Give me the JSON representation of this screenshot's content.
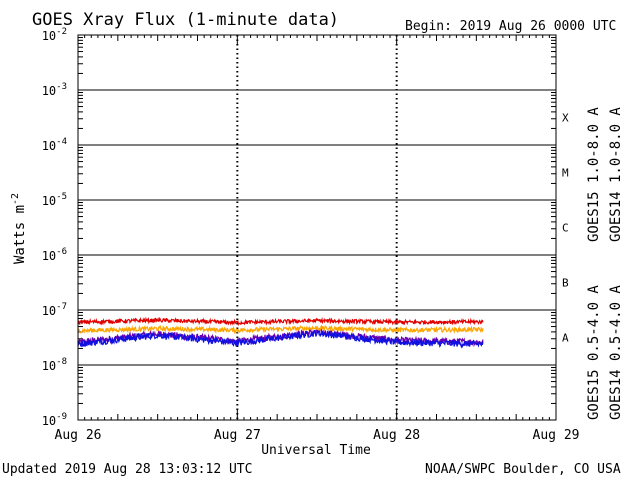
{
  "header": {
    "title": "GOES Xray Flux (1-minute data)",
    "begin": "Begin:  2019 Aug 26 0000 UTC"
  },
  "footer": {
    "updated": "Updated 2019 Aug 28 13:03:12 UTC",
    "credit": "NOAA/SWPC Boulder, CO USA"
  },
  "colors": {
    "goes15_long": "#e00000",
    "goes14_long": "#ffa500",
    "goes15_short": "#1010e0",
    "goes14_short": "#6a00b0"
  },
  "chart_data": {
    "type": "line",
    "title": "GOES Xray Flux (1-minute data)",
    "xlabel": "Universal Time",
    "ylabel": "Watts m",
    "ylabel_sup": "-2",
    "yscale": "log",
    "ylim": [
      1e-09,
      0.01
    ],
    "xlim": [
      "2019-08-26",
      "2019-08-29"
    ],
    "x_tick_labels": [
      "Aug 26",
      "Aug 27",
      "Aug 28",
      "Aug 29"
    ],
    "y_ticks": [
      {
        "base": "10",
        "exp": "-9"
      },
      {
        "base": "10",
        "exp": "-8"
      },
      {
        "base": "10",
        "exp": "-7"
      },
      {
        "base": "10",
        "exp": "-6"
      },
      {
        "base": "10",
        "exp": "-5"
      },
      {
        "base": "10",
        "exp": "-4"
      },
      {
        "base": "10",
        "exp": "-3"
      },
      {
        "base": "10",
        "exp": "-2"
      }
    ],
    "flare_classes": [
      "A",
      "B",
      "C",
      "M",
      "X"
    ],
    "grid": true,
    "series": [
      {
        "name": "GOES15 1.0-8.0 A",
        "x": [
          "2019-08-26 00:00",
          "2019-08-26 12:00",
          "2019-08-27 00:00",
          "2019-08-27 12:00",
          "2019-08-28 00:00",
          "2019-08-28 13:00"
        ],
        "values": [
          6e-08,
          6.5e-08,
          5.9e-08,
          6.4e-08,
          6e-08,
          6.1e-08
        ]
      },
      {
        "name": "GOES14 1.0-8.0 A",
        "x": [
          "2019-08-26 00:00",
          "2019-08-26 12:00",
          "2019-08-27 00:00",
          "2019-08-27 12:00",
          "2019-08-28 00:00",
          "2019-08-28 13:00"
        ],
        "values": [
          4.2e-08,
          4.6e-08,
          4.3e-08,
          4.7e-08,
          4.3e-08,
          4.4e-08
        ]
      },
      {
        "name": "GOES15 0.5-4.0 A",
        "x": [
          "2019-08-26 00:00",
          "2019-08-26 12:00",
          "2019-08-27 00:00",
          "2019-08-27 12:00",
          "2019-08-28 00:00",
          "2019-08-28 13:00"
        ],
        "values": [
          2.4e-08,
          3.5e-08,
          2.5e-08,
          3.8e-08,
          2.6e-08,
          2.4e-08
        ]
      },
      {
        "name": "GOES14 0.5-4.0 A",
        "x": [
          "2019-08-26 00:00",
          "2019-08-26 12:00",
          "2019-08-27 00:00",
          "2019-08-27 12:00",
          "2019-08-28 00:00",
          "2019-08-28 13:00"
        ],
        "values": [
          2.6e-08,
          3.7e-08,
          2.7e-08,
          4e-08,
          2.8e-08,
          2.6e-08
        ]
      }
    ]
  }
}
